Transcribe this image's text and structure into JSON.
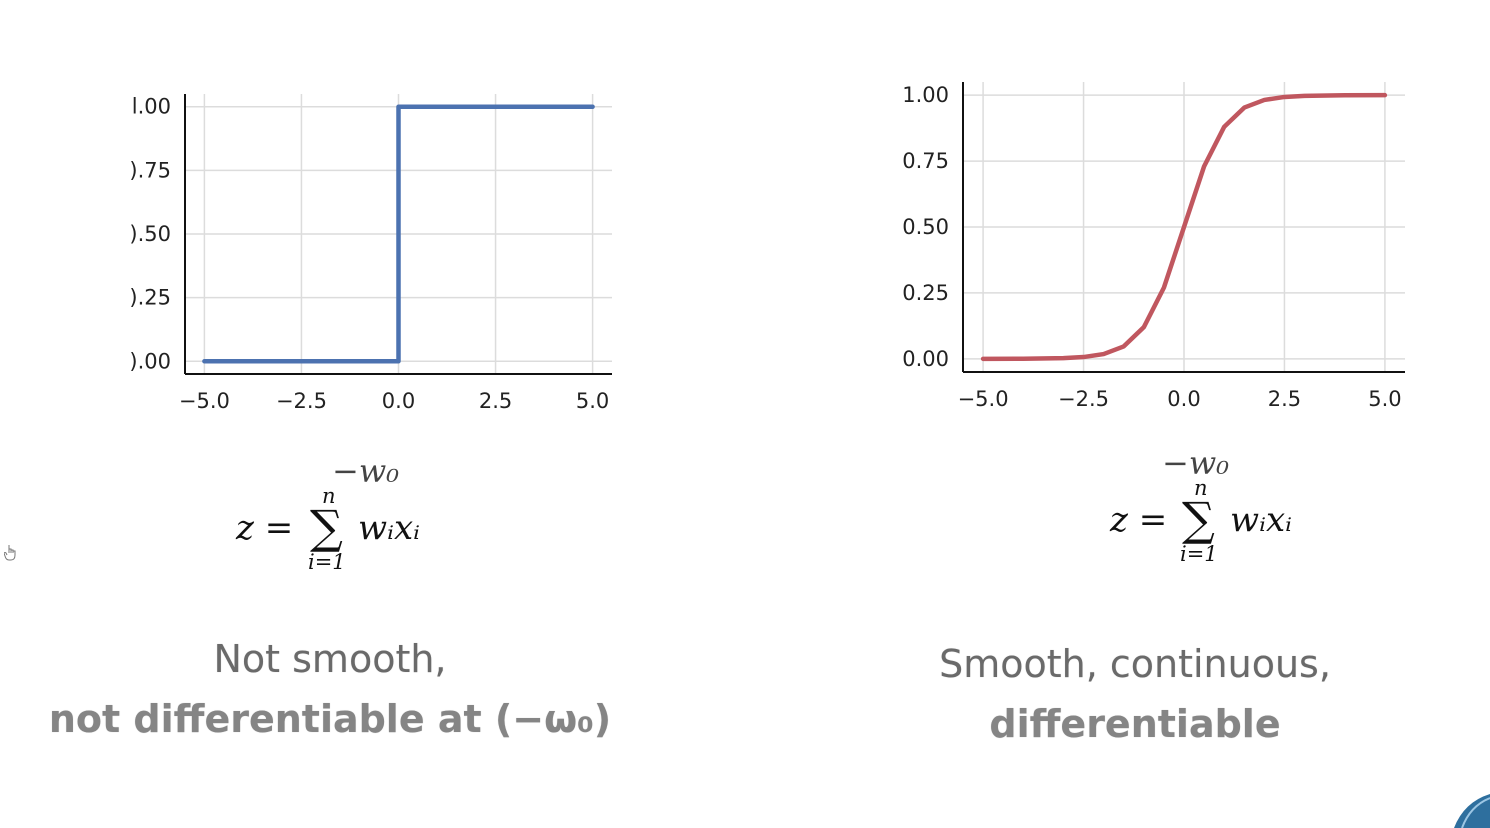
{
  "chart_data": [
    {
      "type": "line",
      "function": "step",
      "x": [
        -5.0,
        0.0,
        0.0,
        5.0
      ],
      "series": [
        {
          "values": [
            0.0,
            0.0,
            1.0,
            1.0
          ]
        }
      ],
      "x_tick_labels": [
        "−5.0",
        "−2.5",
        "0.0",
        "2.5",
        "5.0"
      ],
      "y_tick_labels": [
        ").00",
        ").25",
        ").50",
        ").75",
        "l.00"
      ],
      "xlim": [
        -5.5,
        5.5
      ],
      "ylim": [
        -0.05,
        1.05
      ],
      "grid": true,
      "color": "#4c72b0",
      "formula": {
        "bias": "−w₀",
        "lhs": "z =",
        "sum": "∑",
        "upper": "n",
        "lower": "i=1",
        "term": "wᵢxᵢ"
      },
      "caption": {
        "line1": "Not smooth,",
        "line2": "not differentiable at (−ω₀)"
      }
    },
    {
      "type": "line",
      "function": "sigmoid",
      "x": [
        -5.0,
        -4.0,
        -3.0,
        -2.5,
        -2.0,
        -1.5,
        -1.0,
        -0.5,
        0.0,
        0.5,
        1.0,
        1.5,
        2.0,
        2.5,
        3.0,
        4.0,
        5.0
      ],
      "series": [
        {
          "values": [
            0.0,
            0.0003,
            0.0025,
            0.0067,
            0.018,
            0.047,
            0.12,
            0.27,
            0.5,
            0.73,
            0.88,
            0.953,
            0.982,
            0.9933,
            0.9975,
            0.9997,
            1.0
          ]
        }
      ],
      "x_tick_labels": [
        "−5.0",
        "−2.5",
        "0.0",
        "2.5",
        "5.0"
      ],
      "y_tick_labels": [
        "0.00",
        "0.25",
        "0.50",
        "0.75",
        "1.00"
      ],
      "xlim": [
        -5.5,
        5.5
      ],
      "ylim": [
        -0.05,
        1.05
      ],
      "grid": true,
      "color": "#c0575f",
      "formula": {
        "bias": "−w₀",
        "lhs": "z =",
        "sum": "∑",
        "upper": "n",
        "lower": "i=1",
        "term": "wᵢxᵢ"
      },
      "caption": {
        "line1": "Smooth, continuous,",
        "line2": "differentiable"
      }
    }
  ]
}
